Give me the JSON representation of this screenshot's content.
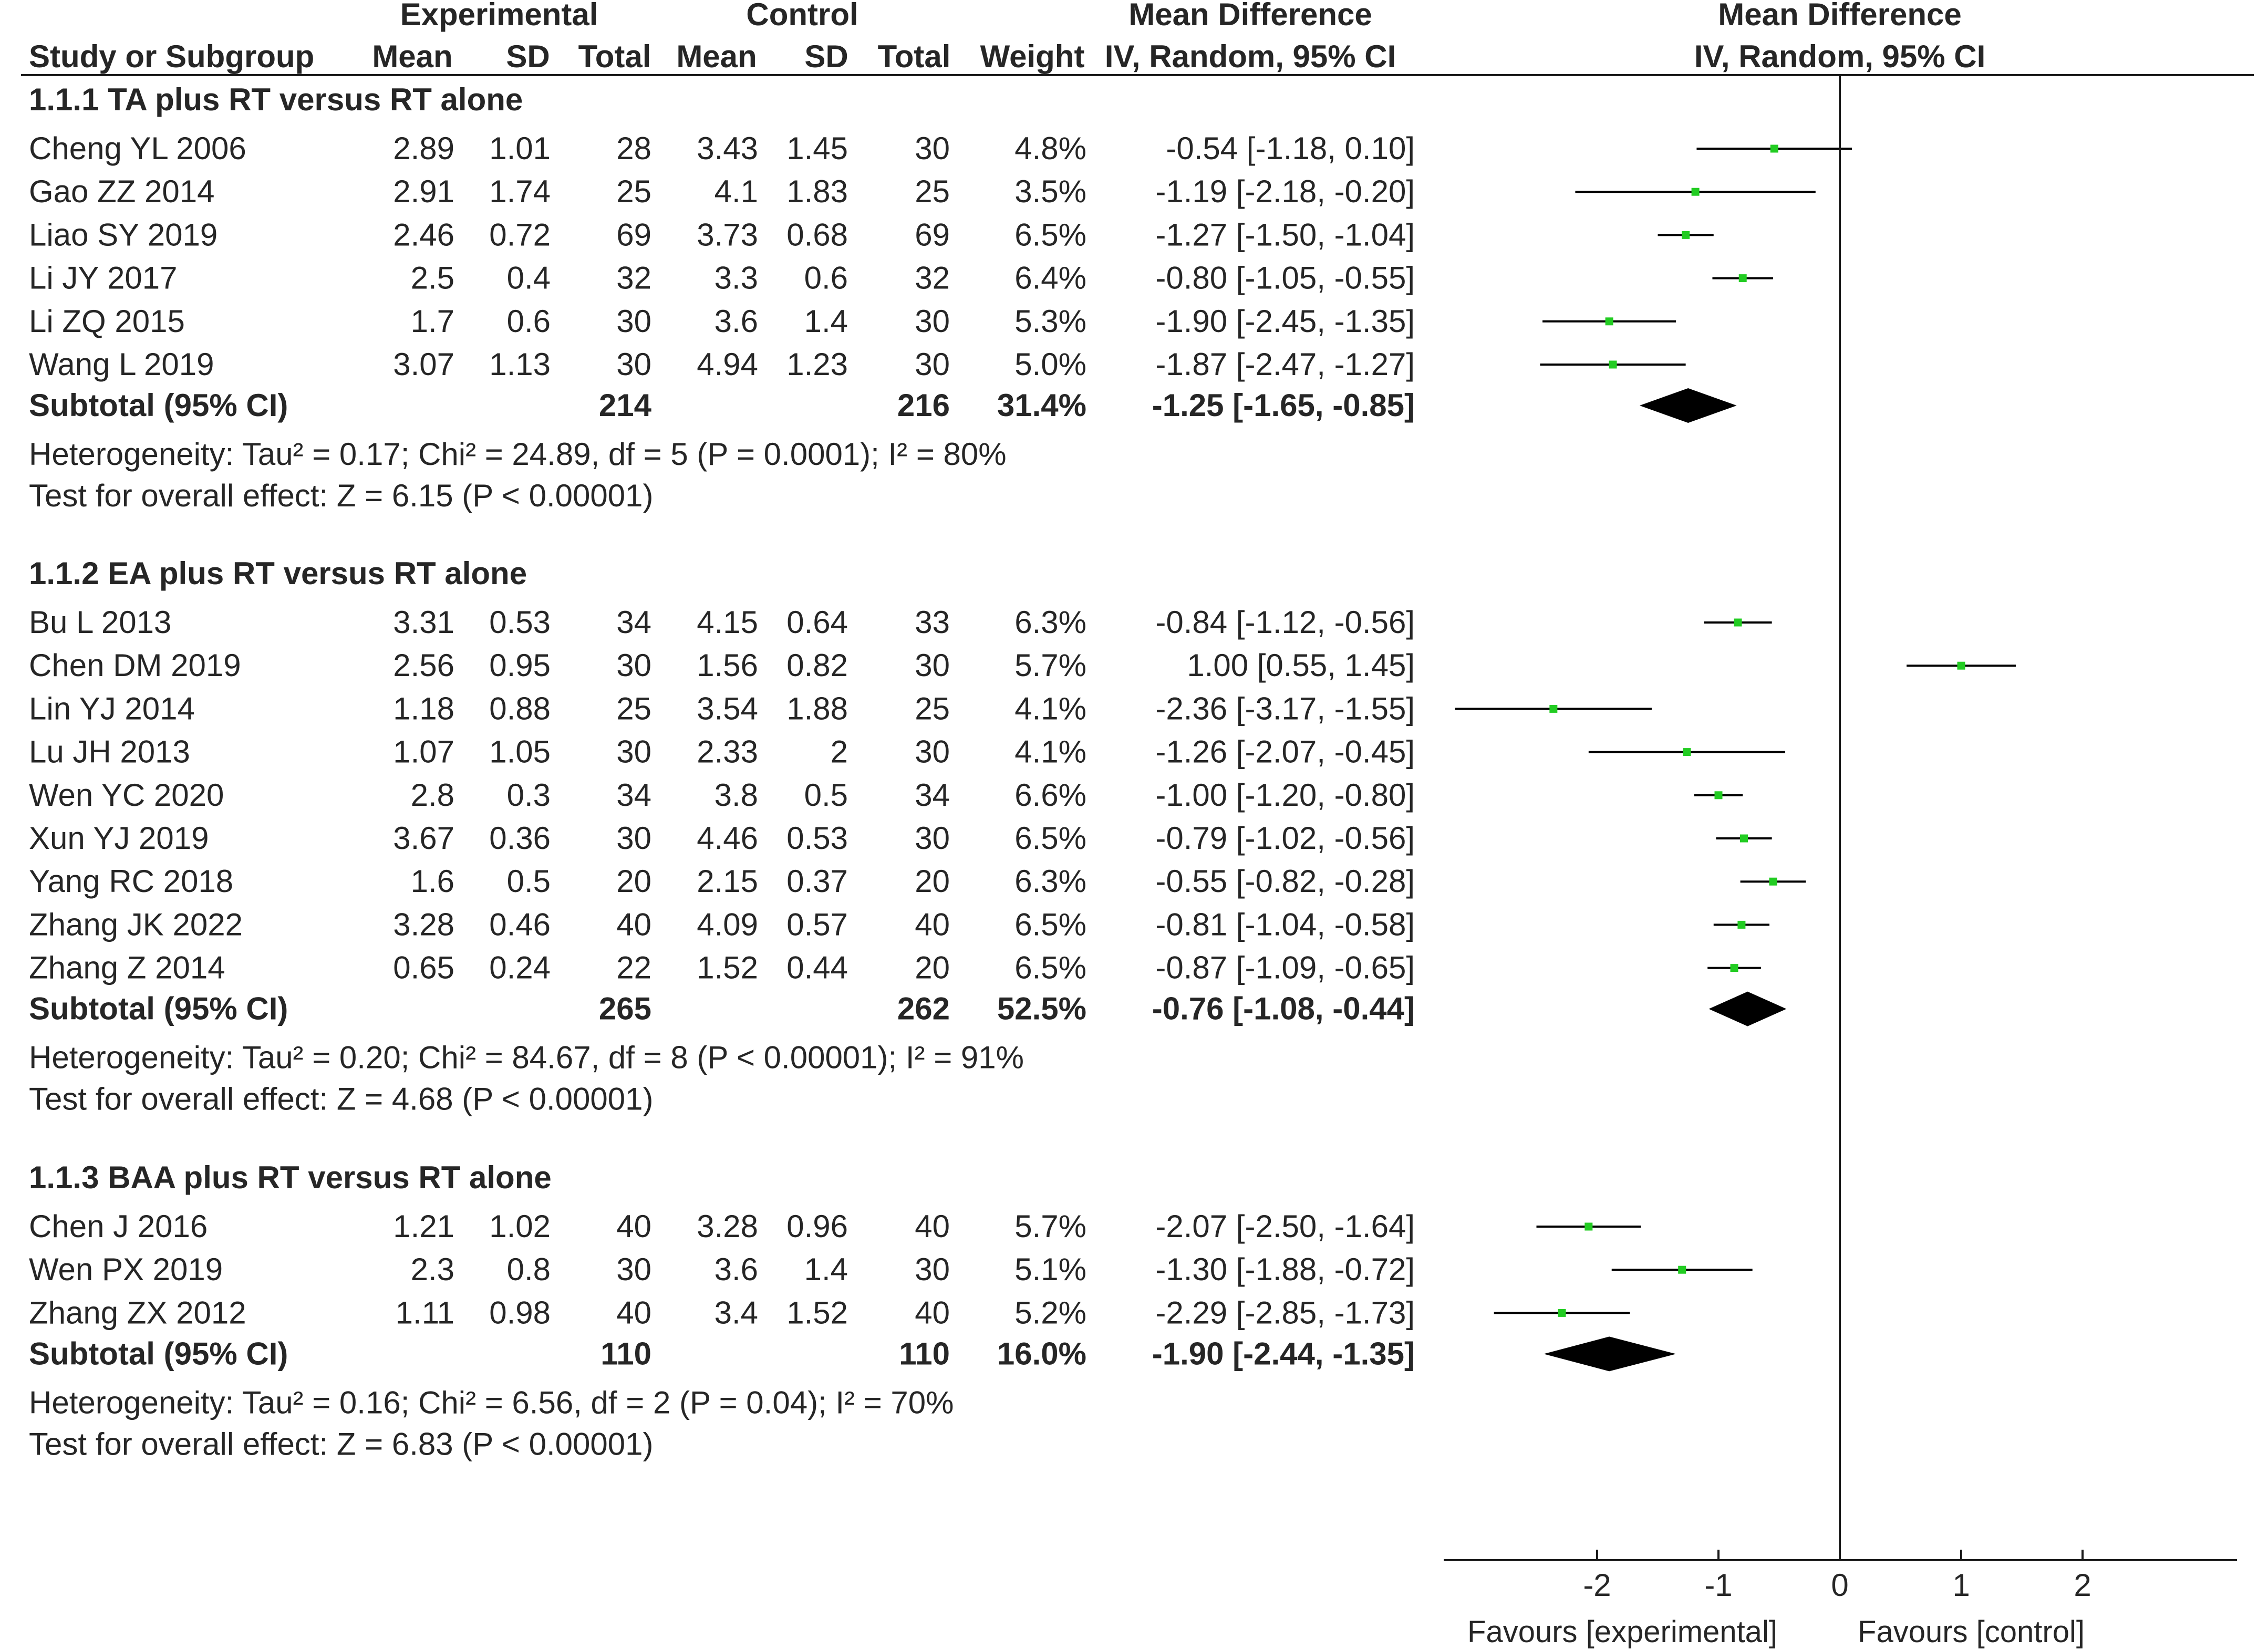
{
  "chart_data": {
    "type": "forest",
    "headers": {
      "experimental": "Experimental",
      "control": "Control",
      "mean_difference_table": "Mean Difference",
      "mean_difference_plot": "Mean Difference",
      "study": "Study or Subgroup",
      "mean": "Mean",
      "sd": "SD",
      "total": "Total",
      "weight": "Weight",
      "method_table": "IV, Random, 95% CI",
      "method_plot": "IV, Random, 95% CI"
    },
    "xlim": [
      -3.2,
      3.2
    ],
    "x_ticks": [
      -2,
      -1,
      0,
      1,
      2
    ],
    "x_tick_labels": [
      "-2",
      "-1",
      "0",
      "1",
      "2"
    ],
    "favours_left": "Favours [experimental]",
    "favours_right": "Favours [control]",
    "square_color": "#22cc22",
    "diamond_color": "#000000",
    "subgroups": [
      {
        "title": "1.1.1 TA plus RT versus RT alone",
        "studies": [
          {
            "name": "Cheng YL 2006",
            "e_mean": "2.89",
            "e_sd": "1.01",
            "e_total": "28",
            "c_mean": "3.43",
            "c_sd": "1.45",
            "c_total": "30",
            "weight": "4.8%",
            "ci_text": "-0.54 [-1.18, 0.10]",
            "md": -0.54,
            "lo": -1.18,
            "hi": 0.1
          },
          {
            "name": "Gao ZZ 2014",
            "e_mean": "2.91",
            "e_sd": "1.74",
            "e_total": "25",
            "c_mean": "4.1",
            "c_sd": "1.83",
            "c_total": "25",
            "weight": "3.5%",
            "ci_text": "-1.19 [-2.18, -0.20]",
            "md": -1.19,
            "lo": -2.18,
            "hi": -0.2
          },
          {
            "name": "Liao SY 2019",
            "e_mean": "2.46",
            "e_sd": "0.72",
            "e_total": "69",
            "c_mean": "3.73",
            "c_sd": "0.68",
            "c_total": "69",
            "weight": "6.5%",
            "ci_text": "-1.27 [-1.50, -1.04]",
            "md": -1.27,
            "lo": -1.5,
            "hi": -1.04
          },
          {
            "name": "Li JY 2017",
            "e_mean": "2.5",
            "e_sd": "0.4",
            "e_total": "32",
            "c_mean": "3.3",
            "c_sd": "0.6",
            "c_total": "32",
            "weight": "6.4%",
            "ci_text": "-0.80 [-1.05, -0.55]",
            "md": -0.8,
            "lo": -1.05,
            "hi": -0.55
          },
          {
            "name": "Li ZQ 2015",
            "e_mean": "1.7",
            "e_sd": "0.6",
            "e_total": "30",
            "c_mean": "3.6",
            "c_sd": "1.4",
            "c_total": "30",
            "weight": "5.3%",
            "ci_text": "-1.90 [-2.45, -1.35]",
            "md": -1.9,
            "lo": -2.45,
            "hi": -1.35
          },
          {
            "name": "Wang L 2019",
            "e_mean": "3.07",
            "e_sd": "1.13",
            "e_total": "30",
            "c_mean": "4.94",
            "c_sd": "1.23",
            "c_total": "30",
            "weight": "5.0%",
            "ci_text": "-1.87 [-2.47, -1.27]",
            "md": -1.87,
            "lo": -2.47,
            "hi": -1.27
          }
        ],
        "subtotal": {
          "label": "Subtotal (95% CI)",
          "e_total": "214",
          "c_total": "216",
          "weight": "31.4%",
          "ci_text": "-1.25 [-1.65, -0.85]",
          "md": -1.25,
          "lo": -1.65,
          "hi": -0.85
        },
        "heterogeneity": "Heterogeneity: Tau² = 0.17; Chi² = 24.89, df = 5 (P = 0.0001); I² = 80%",
        "overall": "Test for overall effect: Z = 6.15 (P < 0.00001)"
      },
      {
        "title": "1.1.2 EA plus RT versus RT alone",
        "studies": [
          {
            "name": "Bu L 2013",
            "e_mean": "3.31",
            "e_sd": "0.53",
            "e_total": "34",
            "c_mean": "4.15",
            "c_sd": "0.64",
            "c_total": "33",
            "weight": "6.3%",
            "ci_text": "-0.84 [-1.12, -0.56]",
            "md": -0.84,
            "lo": -1.12,
            "hi": -0.56
          },
          {
            "name": "Chen DM 2019",
            "e_mean": "2.56",
            "e_sd": "0.95",
            "e_total": "30",
            "c_mean": "1.56",
            "c_sd": "0.82",
            "c_total": "30",
            "weight": "5.7%",
            "ci_text": "1.00 [0.55, 1.45]",
            "md": 1.0,
            "lo": 0.55,
            "hi": 1.45
          },
          {
            "name": "Lin YJ 2014",
            "e_mean": "1.18",
            "e_sd": "0.88",
            "e_total": "25",
            "c_mean": "3.54",
            "c_sd": "1.88",
            "c_total": "25",
            "weight": "4.1%",
            "ci_text": "-2.36 [-3.17, -1.55]",
            "md": -2.36,
            "lo": -3.17,
            "hi": -1.55
          },
          {
            "name": "Lu JH 2013",
            "e_mean": "1.07",
            "e_sd": "1.05",
            "e_total": "30",
            "c_mean": "2.33",
            "c_sd": "2",
            "c_total": "30",
            "weight": "4.1%",
            "ci_text": "-1.26 [-2.07, -0.45]",
            "md": -1.26,
            "lo": -2.07,
            "hi": -0.45
          },
          {
            "name": "Wen YC 2020",
            "e_mean": "2.8",
            "e_sd": "0.3",
            "e_total": "34",
            "c_mean": "3.8",
            "c_sd": "0.5",
            "c_total": "34",
            "weight": "6.6%",
            "ci_text": "-1.00 [-1.20, -0.80]",
            "md": -1.0,
            "lo": -1.2,
            "hi": -0.8
          },
          {
            "name": "Xun YJ 2019",
            "e_mean": "3.67",
            "e_sd": "0.36",
            "e_total": "30",
            "c_mean": "4.46",
            "c_sd": "0.53",
            "c_total": "30",
            "weight": "6.5%",
            "ci_text": "-0.79 [-1.02, -0.56]",
            "md": -0.79,
            "lo": -1.02,
            "hi": -0.56
          },
          {
            "name": "Yang RC 2018",
            "e_mean": "1.6",
            "e_sd": "0.5",
            "e_total": "20",
            "c_mean": "2.15",
            "c_sd": "0.37",
            "c_total": "20",
            "weight": "6.3%",
            "ci_text": "-0.55 [-0.82, -0.28]",
            "md": -0.55,
            "lo": -0.82,
            "hi": -0.28
          },
          {
            "name": "Zhang JK 2022",
            "e_mean": "3.28",
            "e_sd": "0.46",
            "e_total": "40",
            "c_mean": "4.09",
            "c_sd": "0.57",
            "c_total": "40",
            "weight": "6.5%",
            "ci_text": "-0.81 [-1.04, -0.58]",
            "md": -0.81,
            "lo": -1.04,
            "hi": -0.58
          },
          {
            "name": "Zhang Z 2014",
            "e_mean": "0.65",
            "e_sd": "0.24",
            "e_total": "22",
            "c_mean": "1.52",
            "c_sd": "0.44",
            "c_total": "20",
            "weight": "6.5%",
            "ci_text": "-0.87 [-1.09, -0.65]",
            "md": -0.87,
            "lo": -1.09,
            "hi": -0.65
          }
        ],
        "subtotal": {
          "label": "Subtotal (95% CI)",
          "e_total": "265",
          "c_total": "262",
          "weight": "52.5%",
          "ci_text": "-0.76 [-1.08, -0.44]",
          "md": -0.76,
          "lo": -1.08,
          "hi": -0.44
        },
        "heterogeneity": "Heterogeneity: Tau² = 0.20; Chi² = 84.67, df = 8 (P < 0.00001); I² = 91%",
        "overall": "Test for overall effect: Z = 4.68 (P < 0.00001)"
      },
      {
        "title": "1.1.3 BAA plus RT versus RT alone",
        "studies": [
          {
            "name": "Chen J 2016",
            "e_mean": "1.21",
            "e_sd": "1.02",
            "e_total": "40",
            "c_mean": "3.28",
            "c_sd": "0.96",
            "c_total": "40",
            "weight": "5.7%",
            "ci_text": "-2.07 [-2.50, -1.64]",
            "md": -2.07,
            "lo": -2.5,
            "hi": -1.64
          },
          {
            "name": "Wen PX 2019",
            "e_mean": "2.3",
            "e_sd": "0.8",
            "e_total": "30",
            "c_mean": "3.6",
            "c_sd": "1.4",
            "c_total": "30",
            "weight": "5.1%",
            "ci_text": "-1.30 [-1.88, -0.72]",
            "md": -1.3,
            "lo": -1.88,
            "hi": -0.72
          },
          {
            "name": "Zhang ZX 2012",
            "e_mean": "1.11",
            "e_sd": "0.98",
            "e_total": "40",
            "c_mean": "3.4",
            "c_sd": "1.52",
            "c_total": "40",
            "weight": "5.2%",
            "ci_text": "-2.29 [-2.85, -1.73]",
            "md": -2.29,
            "lo": -2.85,
            "hi": -1.73
          }
        ],
        "subtotal": {
          "label": "Subtotal (95% CI)",
          "e_total": "110",
          "c_total": "110",
          "weight": "16.0%",
          "ci_text": "-1.90 [-2.44, -1.35]",
          "md": -1.9,
          "lo": -2.44,
          "hi": -1.35
        },
        "heterogeneity": "Heterogeneity: Tau² = 0.16; Chi² = 6.56, df = 2 (P = 0.04); I² = 70%",
        "overall": "Test for overall effect: Z = 6.83 (P < 0.00001)"
      }
    ]
  }
}
